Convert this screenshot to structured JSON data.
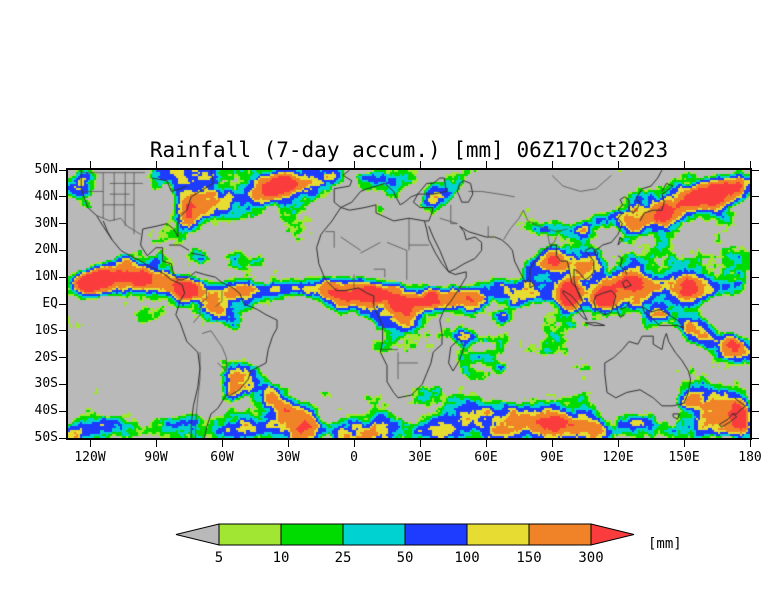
{
  "title": "Rainfall (7-day accum.) [mm] 06Z17Oct2023",
  "colors": {
    "page_background": "#ffffff",
    "map_background": "#b9b9b9",
    "coastline": "#303030",
    "border_line": "#4b4b4b",
    "frame": "#000000",
    "text": "#000000"
  },
  "axes": {
    "lat_tick_labels": [
      "50N",
      "40N",
      "30N",
      "20N",
      "10N",
      "EQ",
      "10S",
      "20S",
      "30S",
      "40S",
      "50S"
    ],
    "lat_tick_values": [
      50,
      40,
      30,
      20,
      10,
      0,
      -10,
      -20,
      -30,
      -40,
      -50
    ],
    "lon_tick_labels": [
      "120W",
      "90W",
      "60W",
      "30W",
      "0",
      "30E",
      "60E",
      "90E",
      "120E",
      "150E",
      "180"
    ],
    "lon_tick_values": [
      -120,
      -90,
      -60,
      -30,
      0,
      30,
      60,
      90,
      120,
      150,
      180
    ],
    "lon_range": [
      -130,
      180
    ],
    "lat_range": [
      -50,
      50
    ]
  },
  "colorbar": {
    "segment_labels": [
      "5",
      "10",
      "25",
      "50",
      "100",
      "150",
      "300"
    ],
    "segment_colors": [
      "#a0e632",
      "#00dc00",
      "#00d2d2",
      "#1e3cff",
      "#e6dc32",
      "#f08228"
    ],
    "under_arrow_color": "#b9b9b9",
    "over_arrow_color": "#fa3c3c",
    "unit_label": "[mm]"
  },
  "chart_data": {
    "type": "heatmap",
    "title": "Rainfall (7-day accum.) [mm] 06Z17Oct2023",
    "variable": "Rainfall (7-day accum.)",
    "valid_time": "06Z17Oct2023",
    "units": "mm",
    "xlabel_ticks": [
      "120W",
      "90W",
      "60W",
      "30W",
      "0",
      "30E",
      "60E",
      "90E",
      "120E",
      "150E",
      "180"
    ],
    "ylabel_ticks": [
      "50N",
      "40N",
      "30N",
      "20N",
      "10N",
      "EQ",
      "10S",
      "20S",
      "30S",
      "40S",
      "50S"
    ],
    "levels_mm": [
      5,
      10,
      25,
      50,
      100,
      150,
      300
    ],
    "level_colors": [
      "#a0e632",
      "#00dc00",
      "#00d2d2",
      "#1e3cff",
      "#e6dc32",
      "#f08228",
      "#fa3c3c"
    ],
    "below_level_color": "#b9b9b9",
    "pattern": {
      "_note_bands": "[lon_start,lon_end,lat_start,lat_end,half_width_deg,strength] rain bands depicted",
      "bands": [
        [
          -130,
          -82,
          8,
          8,
          4,
          1.7
        ],
        [
          -82,
          -10,
          5,
          6,
          4,
          1.4
        ],
        [
          -12,
          38,
          4,
          2,
          6,
          1.5
        ],
        [
          40,
          100,
          2,
          5,
          5,
          1.5
        ],
        [
          95,
          155,
          4,
          6,
          7,
          1.5
        ],
        [
          150,
          180,
          7,
          7,
          5,
          1.5
        ],
        [
          148,
          180,
          -8,
          -20,
          6,
          1.2
        ],
        [
          122,
          180,
          30,
          46,
          6,
          1.6
        ],
        [
          -78,
          -5,
          37,
          48,
          6,
          1.3
        ],
        [
          -130,
          180,
          -48,
          -46,
          6,
          1.1
        ],
        [
          -60,
          -15,
          -24,
          -46,
          6,
          1.2
        ],
        [
          45,
          115,
          -36,
          -48,
          6,
          1.0
        ],
        [
          145,
          180,
          -34,
          -44,
          6,
          1.2
        ],
        [
          78,
          112,
          13,
          14,
          5,
          1.2
        ],
        [
          -118,
          -92,
          12,
          12,
          4,
          1.4
        ],
        [
          -130,
          -118,
          42,
          48,
          6,
          1.2
        ],
        [
          100,
          125,
          28,
          33,
          5,
          1.0
        ],
        [
          30,
          48,
          38,
          43,
          5,
          0.9
        ],
        [
          -95,
          -60,
          44,
          49,
          6,
          0.9
        ],
        [
          0,
          30,
          45,
          49,
          5,
          0.9
        ],
        [
          75,
          98,
          28,
          28,
          3,
          0.9
        ]
      ],
      "_note_spots": "[lon,lat,rx_deg,ry_deg,strength] heavy-rain cores depicted",
      "spots": [
        [
          -76,
          5,
          5,
          4,
          1.5
        ],
        [
          -64,
          -3,
          8,
          5,
          1.1
        ],
        [
          8,
          4,
          6,
          4,
          1.5
        ],
        [
          22,
          -2,
          8,
          6,
          1.4
        ],
        [
          36,
          2,
          4,
          4,
          1.0
        ],
        [
          98,
          2,
          5,
          5,
          1.4
        ],
        [
          113,
          2,
          5,
          4,
          1.4
        ],
        [
          127,
          9,
          6,
          5,
          1.5
        ],
        [
          140,
          -4,
          7,
          4,
          1.3
        ],
        [
          90,
          17,
          5,
          4,
          1.3
        ],
        [
          -56,
          -33,
          5,
          4,
          1.7
        ],
        [
          176,
          -39,
          5,
          5,
          1.5
        ],
        [
          142,
          33,
          7,
          4,
          1.5
        ],
        [
          158,
          40,
          10,
          5,
          1.4
        ],
        [
          -33,
          45,
          8,
          4,
          1.3
        ],
        [
          50,
          -12,
          5,
          4,
          1.0
        ],
        [
          -70,
          17,
          6,
          4,
          1.0
        ],
        [
          68,
          -5,
          5,
          4,
          1.1
        ],
        [
          172,
          -15,
          5,
          4,
          1.3
        ],
        [
          -120,
          8,
          5,
          4,
          1.5
        ],
        [
          -75,
          31,
          5,
          4,
          1.0
        ],
        [
          -88,
          17,
          5,
          4,
          0.9
        ]
      ],
      "_note_dry": "[lon,lat,rx_deg,ry_deg,strength] dry (gray) zones depicted",
      "dry": [
        [
          8,
          22,
          24,
          8,
          1.6
        ],
        [
          45,
          27,
          14,
          7,
          1.5
        ],
        [
          60,
          33,
          10,
          6,
          1.0
        ],
        [
          80,
          42,
          22,
          7,
          1.1
        ],
        [
          130,
          -26,
          16,
          7,
          1.3
        ],
        [
          -97,
          -25,
          26,
          11,
          1.4
        ],
        [
          -6,
          -20,
          14,
          9,
          1.3
        ],
        [
          -110,
          29,
          12,
          7,
          1.2
        ],
        [
          17,
          -27,
          8,
          6,
          1.0
        ],
        [
          -42,
          -9,
          8,
          5,
          0.7
        ],
        [
          -124,
          23,
          8,
          6,
          0.8
        ],
        [
          75,
          24,
          6,
          4,
          0.6
        ],
        [
          105,
          47,
          20,
          5,
          0.8
        ],
        [
          -65,
          -25,
          8,
          6,
          0.6
        ]
      ],
      "noise": {
        "seed": 11,
        "lon_wavelength_deg": 13,
        "lat_wavelength_deg": 8.5,
        "amplitude": 1.4,
        "offset": 0.56,
        "weight_gain": 0.55,
        "mm_scale": 300
      }
    }
  }
}
